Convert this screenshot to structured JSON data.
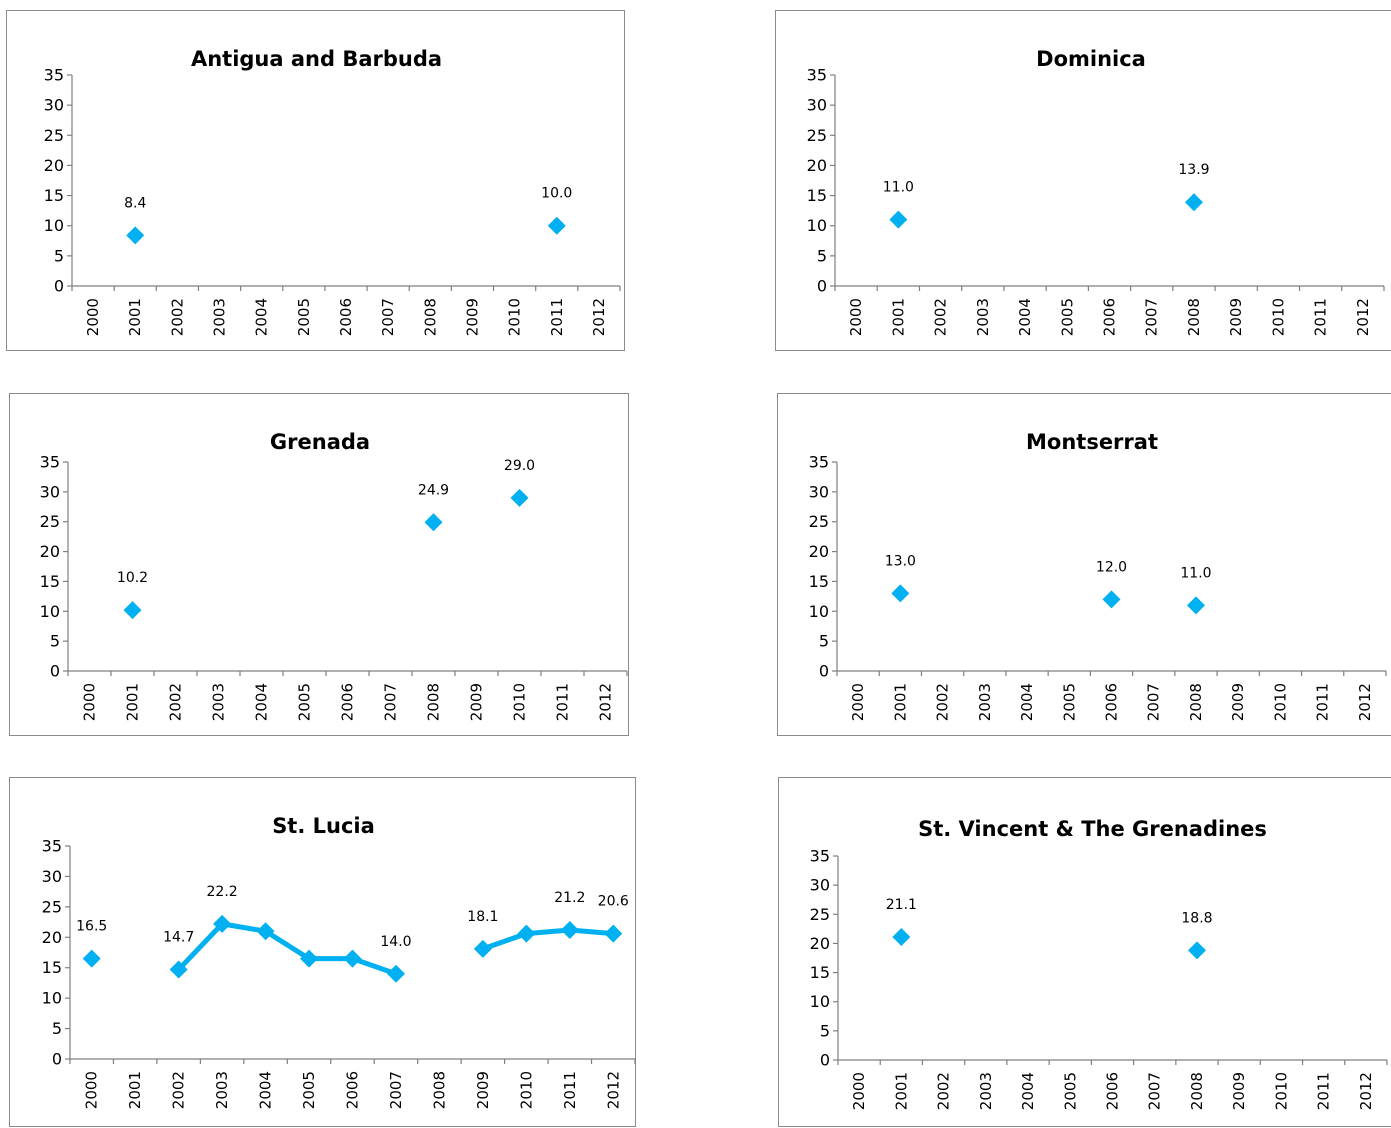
{
  "chart_data": [
    {
      "type": "scatter",
      "title": "Antigua and Barbuda",
      "categories": [
        "2000",
        "2001",
        "2002",
        "2003",
        "2004",
        "2005",
        "2006",
        "2007",
        "2008",
        "2009",
        "2010",
        "2011",
        "2012"
      ],
      "values": [
        null,
        8.4,
        null,
        null,
        null,
        null,
        null,
        null,
        null,
        null,
        null,
        10.0,
        null
      ],
      "data_labels": [
        null,
        "8.4",
        null,
        null,
        null,
        null,
        null,
        null,
        null,
        null,
        null,
        "10.0",
        null
      ],
      "yticks": [
        "0",
        "5",
        "10",
        "15",
        "20",
        "25",
        "30",
        "35"
      ],
      "ylim": [
        0,
        35
      ],
      "color": "#00B0F0",
      "connected": false,
      "grid": false,
      "legend": "none"
    },
    {
      "type": "scatter",
      "title": "Dominica",
      "categories": [
        "2000",
        "2001",
        "2002",
        "2003",
        "2004",
        "2005",
        "2006",
        "2007",
        "2008",
        "2009",
        "2010",
        "2011",
        "2012"
      ],
      "values": [
        null,
        11.0,
        null,
        null,
        null,
        null,
        null,
        null,
        13.9,
        null,
        null,
        null,
        null
      ],
      "data_labels": [
        null,
        "11.0",
        null,
        null,
        null,
        null,
        null,
        null,
        "13.9",
        null,
        null,
        null,
        null
      ],
      "yticks": [
        "0",
        "5",
        "10",
        "15",
        "20",
        "25",
        "30",
        "35"
      ],
      "ylim": [
        0,
        35
      ],
      "color": "#00B0F0",
      "connected": false,
      "grid": false,
      "legend": "none"
    },
    {
      "type": "scatter",
      "title": "Grenada",
      "categories": [
        "2000",
        "2001",
        "2002",
        "2003",
        "2004",
        "2005",
        "2006",
        "2007",
        "2008",
        "2009",
        "2010",
        "2011",
        "2012"
      ],
      "values": [
        null,
        10.2,
        null,
        null,
        null,
        null,
        null,
        null,
        24.9,
        null,
        29.0,
        null,
        null
      ],
      "data_labels": [
        null,
        "10.2",
        null,
        null,
        null,
        null,
        null,
        null,
        "24.9",
        null,
        "29.0",
        null,
        null
      ],
      "yticks": [
        "0",
        "5",
        "10",
        "15",
        "20",
        "25",
        "30",
        "35"
      ],
      "ylim": [
        0,
        35
      ],
      "color": "#00B0F0",
      "connected": false,
      "grid": false,
      "legend": "none"
    },
    {
      "type": "scatter",
      "title": "Montserrat",
      "categories": [
        "2000",
        "2001",
        "2002",
        "2003",
        "2004",
        "2005",
        "2006",
        "2007",
        "2008",
        "2009",
        "2010",
        "2011",
        "2012"
      ],
      "values": [
        null,
        13.0,
        null,
        null,
        null,
        null,
        12.0,
        null,
        11.0,
        null,
        null,
        null,
        null
      ],
      "data_labels": [
        null,
        "13.0",
        null,
        null,
        null,
        null,
        "12.0",
        null,
        "11.0",
        null,
        null,
        null,
        null
      ],
      "yticks": [
        "0",
        "5",
        "10",
        "15",
        "20",
        "25",
        "30",
        "35"
      ],
      "ylim": [
        0,
        35
      ],
      "color": "#00B0F0",
      "connected": false,
      "grid": false,
      "legend": "none"
    },
    {
      "type": "line",
      "title": "St. Lucia",
      "categories": [
        "2000",
        "2001",
        "2002",
        "2003",
        "2004",
        "2005",
        "2006",
        "2007",
        "2008",
        "2009",
        "2010",
        "2011",
        "2012"
      ],
      "values": [
        16.5,
        null,
        14.7,
        22.2,
        21.0,
        16.5,
        16.5,
        14.0,
        null,
        18.1,
        20.6,
        21.2,
        20.6
      ],
      "data_labels": [
        "16.5",
        null,
        "14.7",
        "22.2",
        null,
        null,
        null,
        "14.0",
        null,
        "18.1",
        null,
        "21.2",
        "20.6"
      ],
      "yticks": [
        "0",
        "5",
        "10",
        "15",
        "20",
        "25",
        "30",
        "35"
      ],
      "ylim": [
        0,
        35
      ],
      "color": "#00B0F0",
      "connected": true,
      "grid": false,
      "legend": "none"
    },
    {
      "type": "scatter",
      "title": "St. Vincent & The Grenadines",
      "categories": [
        "2000",
        "2001",
        "2002",
        "2003",
        "2004",
        "2005",
        "2006",
        "2007",
        "2008",
        "2009",
        "2010",
        "2011",
        "2012"
      ],
      "values": [
        null,
        21.1,
        null,
        null,
        null,
        null,
        null,
        null,
        18.8,
        null,
        null,
        null,
        null
      ],
      "data_labels": [
        null,
        "21.1",
        null,
        null,
        null,
        null,
        null,
        null,
        "18.8",
        null,
        null,
        null,
        null
      ],
      "yticks": [
        "0",
        "5",
        "10",
        "15",
        "20",
        "25",
        "30",
        "35"
      ],
      "ylim": [
        0,
        35
      ],
      "color": "#00B0F0",
      "connected": false,
      "grid": false,
      "legend": "none"
    }
  ]
}
